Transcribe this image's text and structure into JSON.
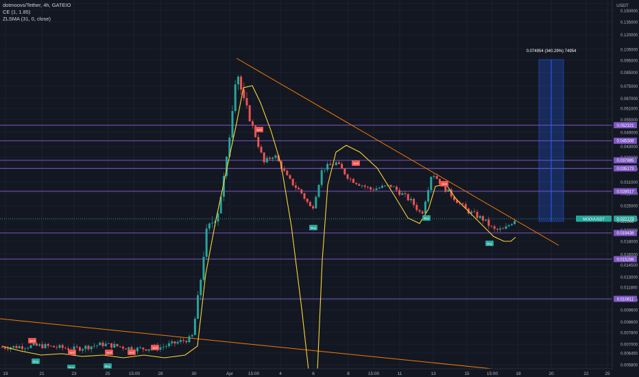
{
  "legend": {
    "symbol": "dotmoovs/Tether, 4h, GATEIO",
    "indicator1": "CE (1, 1.85)",
    "indicator2": "ZLSMA (31, 0, close)"
  },
  "chart_data": {
    "type": "candlestick",
    "title": "dotmoovs/Tether, 4h, GATEIO",
    "currency": "USDT",
    "y_axis_labels": [
      "0.160000",
      "0.150000",
      "0.135000",
      "0.120000",
      "0.105000",
      "0.095000",
      "0.085000",
      "0.075000",
      "0.067000",
      "0.061000",
      "0.055000",
      "0.049000",
      "0.043000",
      "0.039000",
      "0.035000",
      "0.031000",
      "0.028000",
      "0.025000",
      "0.022000",
      "0.020000",
      "0.018000",
      "0.016000",
      "0.014500",
      "0.013000",
      "0.011800",
      "0.010500",
      "0.009600",
      "0.008600",
      "0.007800",
      "0.007000",
      "0.006450",
      "0.005800"
    ],
    "x_axis_labels": [
      "19",
      "21",
      "23",
      "25",
      "15:00",
      "28",
      "30",
      "Apr",
      "15:00",
      "4",
      "6",
      "8",
      "15:00",
      "11",
      "13",
      "15",
      "15:00",
      "18",
      "20",
      "22",
      "25"
    ],
    "horizontal_levels": [
      {
        "value": "0.052321",
        "color": "#7e57c2"
      },
      {
        "value": "0.045308",
        "color": "#7e57c2"
      },
      {
        "value": "0.037885",
        "color": "#7e57c2"
      },
      {
        "value": "0.035173",
        "color": "#7e57c2"
      },
      {
        "value": "0.028517",
        "color": "#7e57c2"
      },
      {
        "value": "0.019438",
        "color": "#7e57c2"
      },
      {
        "value": "0.015288",
        "color": "#7e57c2"
      },
      {
        "value": "0.010611",
        "color": "#7e57c2"
      }
    ],
    "current_price": {
      "label": "MOOVUSDT",
      "value": "0.022173",
      "color": "#26a69a"
    },
    "last_price": {
      "value": "0.021966"
    },
    "signals": [
      {
        "type": "Sell",
        "near": "21"
      },
      {
        "type": "Buy",
        "near": "21"
      },
      {
        "type": "Sell",
        "near": "23"
      },
      {
        "type": "Buy",
        "near": "23"
      },
      {
        "type": "Sell",
        "near": "25"
      },
      {
        "type": "Buy",
        "near": "25"
      },
      {
        "type": "Sell",
        "near": "27"
      },
      {
        "type": "Sell",
        "near": "28"
      },
      {
        "type": "Sell",
        "near": "Apr"
      },
      {
        "type": "Buy",
        "near": "6"
      },
      {
        "type": "Sell",
        "near": "7"
      },
      {
        "type": "Buy",
        "near": "13"
      },
      {
        "type": "Sell",
        "near": "13"
      },
      {
        "type": "Buy",
        "near": "15:00"
      }
    ],
    "measure_box": {
      "label": "0.074954 (340.29%) 74954",
      "color": "#2962ff"
    },
    "trendlines": [
      {
        "from": "Apr",
        "to": "18",
        "color": "#f57c00"
      },
      {
        "from": "19",
        "to": "15:00",
        "color": "#f57c00"
      }
    ],
    "zlsma_color": "#fdd835",
    "up_color": "#26a69a",
    "down_color": "#ef5350",
    "grid": true
  }
}
